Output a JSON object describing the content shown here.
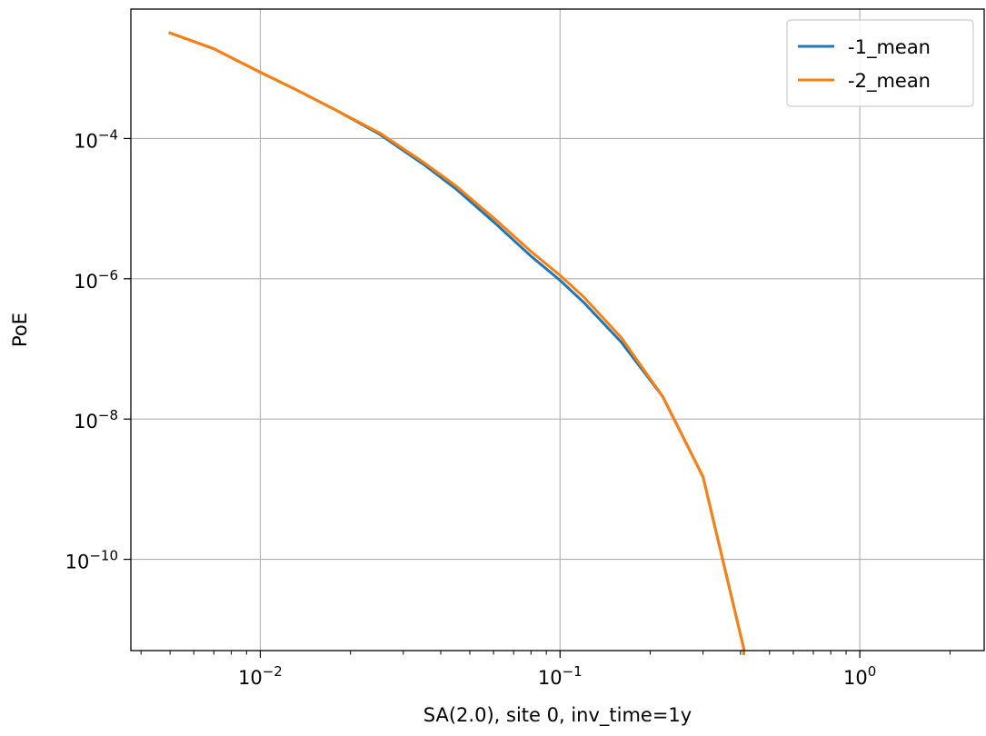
{
  "colors": {
    "series_1": "#1f77b4",
    "series_2": "#ff7f0e",
    "grid": "#b0b0b0",
    "axes": "#000000"
  },
  "chart_data": {
    "type": "line",
    "title": "",
    "xlabel": "SA(2.0), site 0, inv_time=1y",
    "ylabel": "PoE",
    "xscale": "log",
    "yscale": "log",
    "xlim": [
      0.0037,
      2.6
    ],
    "ylim": [
      5e-12,
      0.007
    ],
    "grid": true,
    "legend_position": "top-right",
    "x_ticks": [
      {
        "value": 0.01,
        "mantissa": "10",
        "exponent": "−2"
      },
      {
        "value": 0.1,
        "mantissa": "10",
        "exponent": "−1"
      },
      {
        "value": 1,
        "mantissa": "10",
        "exponent": "0"
      }
    ],
    "y_ticks": [
      {
        "value": 0.0001,
        "mantissa": "10",
        "exponent": "−4"
      },
      {
        "value": 1e-06,
        "mantissa": "10",
        "exponent": "−6"
      },
      {
        "value": 1e-08,
        "mantissa": "10",
        "exponent": "−8"
      },
      {
        "value": 1e-10,
        "mantissa": "10",
        "exponent": "−10"
      }
    ],
    "series": [
      {
        "name": "-1_mean",
        "color": "#1f77b4",
        "x": [
          0.005,
          0.007,
          0.01,
          0.013,
          0.018,
          0.025,
          0.035,
          0.045,
          0.06,
          0.08,
          0.1,
          0.12,
          0.16,
          0.22,
          0.3,
          0.41,
          0.41
        ],
        "y": [
          0.0032,
          0.0019,
          0.00088,
          0.00051,
          0.00025,
          0.000115,
          4.3e-05,
          1.9e-05,
          6.5e-06,
          2.1e-06,
          9.5e-07,
          4.6e-07,
          1.25e-07,
          2.1e-08,
          1.5e-09,
          5.4e-12,
          4.5e-12
        ]
      },
      {
        "name": "-2_mean",
        "color": "#ff7f0e",
        "x": [
          0.005,
          0.007,
          0.01,
          0.013,
          0.018,
          0.025,
          0.035,
          0.045,
          0.06,
          0.08,
          0.1,
          0.12,
          0.16,
          0.22,
          0.3,
          0.41,
          0.41
        ],
        "y": [
          0.0032,
          0.0019,
          0.00088,
          0.00051,
          0.00025,
          0.00012,
          4.6e-05,
          2.1e-05,
          7.4e-06,
          2.45e-06,
          1.12e-06,
          5.5e-07,
          1.45e-07,
          2.1e-08,
          1.5e-09,
          5.4e-12,
          4.5e-12
        ]
      }
    ]
  }
}
